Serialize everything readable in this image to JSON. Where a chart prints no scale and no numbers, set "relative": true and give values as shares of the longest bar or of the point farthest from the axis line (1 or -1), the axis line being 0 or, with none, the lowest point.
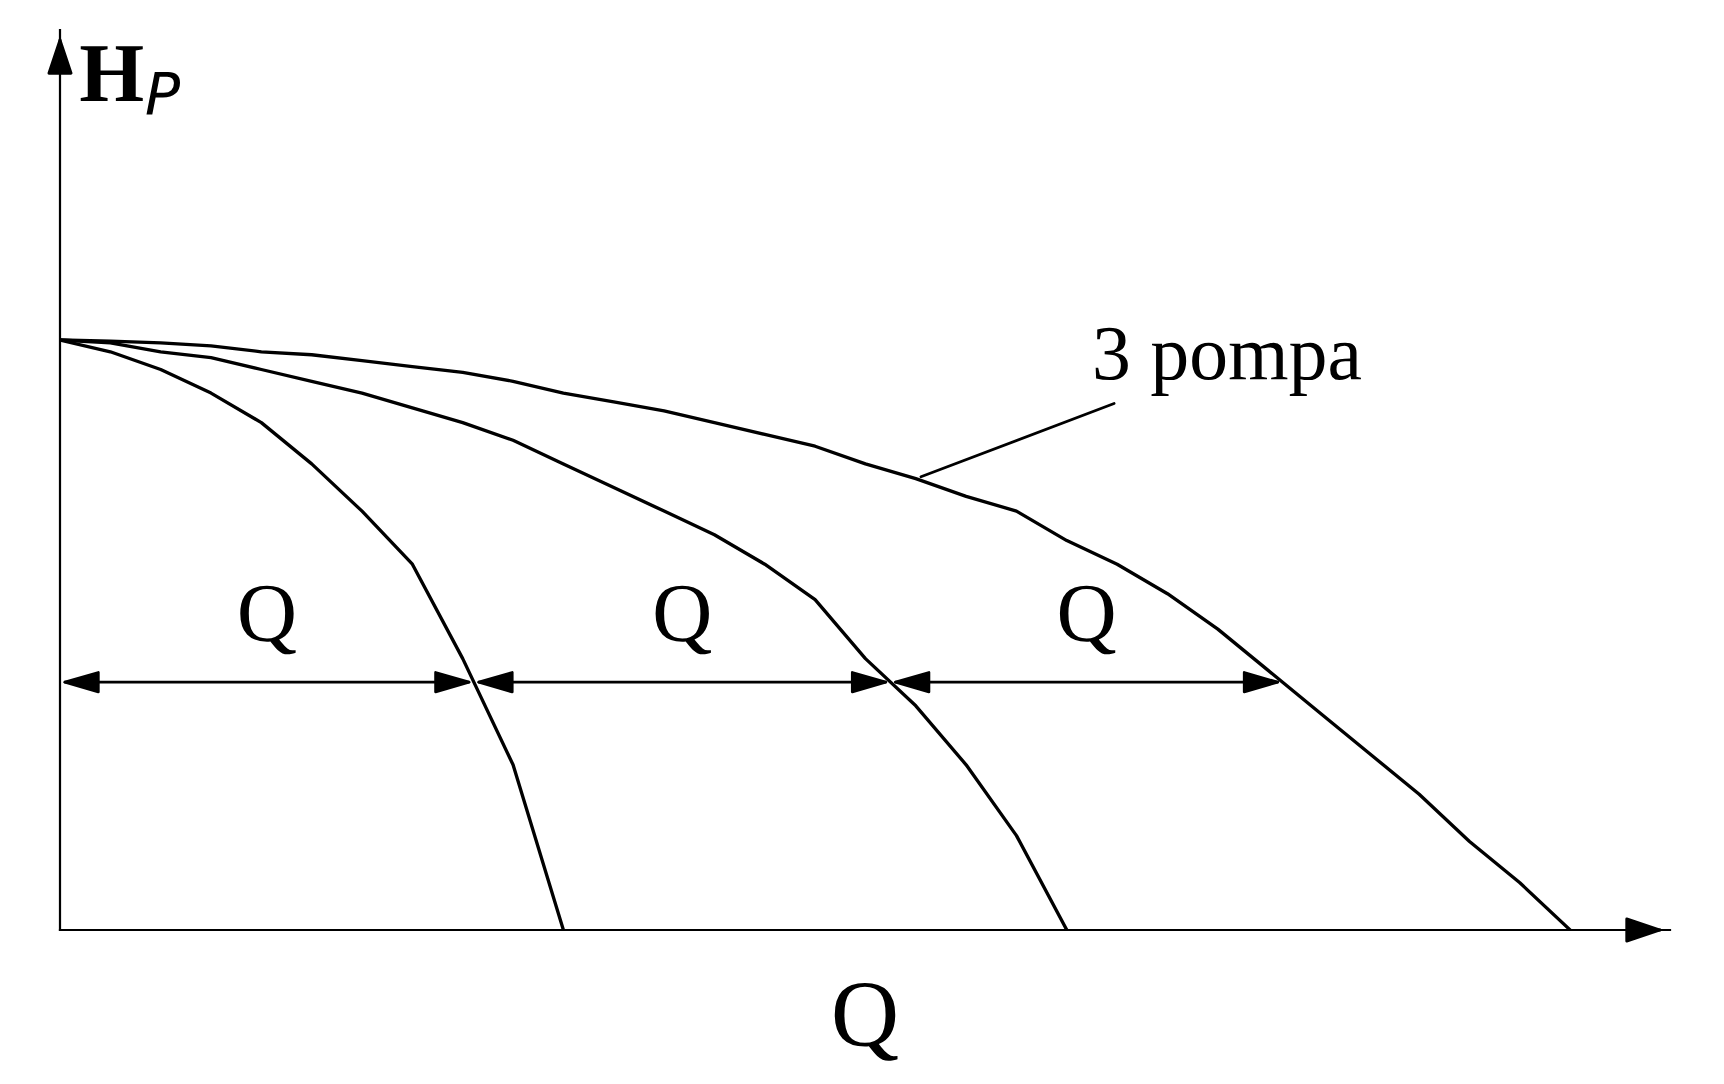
{
  "chart_data": {
    "type": "line",
    "relative": true,
    "xlabel": "Q",
    "ylabel": "H$_{P}$",
    "legend": false,
    "marker": "none",
    "line_style": "solid",
    "categories": [
      null,
      null,
      null,
      null,
      null,
      null,
      null,
      null,
      null,
      null,
      null,
      null,
      null,
      null,
      null,
      null,
      null,
      null,
      null,
      null,
      null,
      null,
      null,
      null,
      null,
      null,
      null,
      null,
      null,
      null,
      null
    ],
    "series": [
      {
        "color": "#000000",
        "values": [
          1.0,
          0.98,
          0.95,
          0.91,
          0.86,
          0.79,
          0.71,
          0.62,
          0.46,
          0.28,
          0.0,
          null,
          null,
          null,
          null,
          null,
          null,
          null,
          null,
          null,
          null,
          null,
          null,
          null,
          null,
          null,
          null,
          null,
          null,
          null,
          null
        ]
      },
      {
        "color": "#000000",
        "values": [
          1.0,
          0.995,
          0.98,
          0.97,
          0.95,
          0.93,
          0.91,
          0.885,
          0.86,
          0.83,
          0.79,
          0.75,
          0.71,
          0.67,
          0.62,
          0.56,
          0.46,
          0.38,
          0.28,
          0.16,
          0.0,
          null,
          null,
          null,
          null,
          null,
          null,
          null,
          null,
          null,
          null
        ]
      },
      {
        "name": "3 pompa",
        "color": "#000000",
        "values": [
          1.0,
          0.998,
          0.995,
          0.99,
          0.98,
          0.975,
          0.965,
          0.955,
          0.945,
          0.93,
          0.91,
          0.895,
          0.88,
          0.86,
          0.84,
          0.82,
          0.79,
          0.765,
          0.735,
          0.71,
          0.66,
          0.62,
          0.57,
          0.51,
          0.44,
          0.37,
          0.3,
          0.23,
          0.15,
          0.08,
          0.0
        ]
      }
    ],
    "annotations": [
      "Q",
      "Q",
      "Q"
    ]
  }
}
